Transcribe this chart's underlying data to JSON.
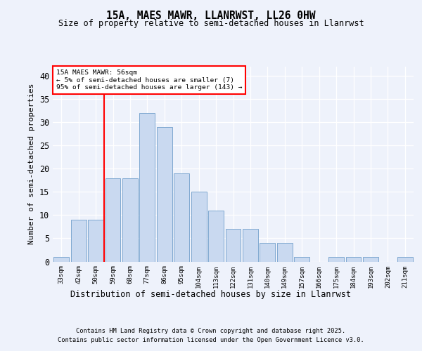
{
  "title1": "15A, MAES MAWR, LLANRWST, LL26 0HW",
  "title2": "Size of property relative to semi-detached houses in Llanrwst",
  "xlabel": "Distribution of semi-detached houses by size in Llanrwst",
  "ylabel": "Number of semi-detached properties",
  "categories": [
    "33sqm",
    "42sqm",
    "50sqm",
    "59sqm",
    "68sqm",
    "77sqm",
    "86sqm",
    "95sqm",
    "104sqm",
    "113sqm",
    "122sqm",
    "131sqm",
    "140sqm",
    "149sqm",
    "157sqm",
    "166sqm",
    "175sqm",
    "184sqm",
    "193sqm",
    "202sqm",
    "211sqm"
  ],
  "values": [
    1,
    9,
    9,
    18,
    18,
    32,
    29,
    19,
    15,
    11,
    7,
    7,
    4,
    4,
    1,
    0,
    1,
    1,
    1,
    0,
    1
  ],
  "bar_color": "#c9d9f0",
  "bar_edge_color": "#7fa8d0",
  "vline_x_index": 2,
  "annotation_title": "15A MAES MAWR: 56sqm",
  "annotation_line1": "← 5% of semi-detached houses are smaller (7)",
  "annotation_line2": "95% of semi-detached houses are larger (143) →",
  "ylim": [
    0,
    42
  ],
  "yticks": [
    0,
    5,
    10,
    15,
    20,
    25,
    30,
    35,
    40
  ],
  "footer1": "Contains HM Land Registry data © Crown copyright and database right 2025.",
  "footer2": "Contains public sector information licensed under the Open Government Licence v3.0.",
  "bg_color": "#eef2fb"
}
